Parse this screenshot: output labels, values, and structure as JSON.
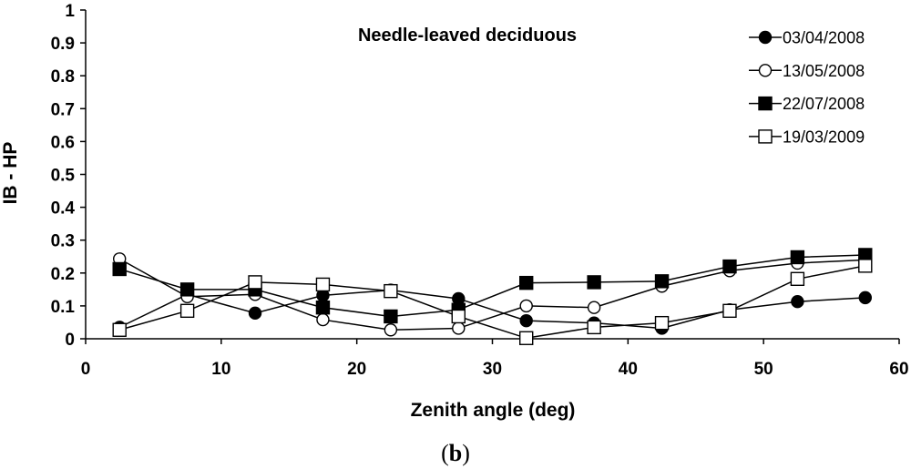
{
  "chart_data": {
    "type": "line",
    "title": "Needle-leaved deciduous",
    "xlabel": "Zenith angle (deg)",
    "ylabel": "IB - HP",
    "xlim": [
      0,
      60
    ],
    "ylim": [
      0,
      1
    ],
    "xticks": [
      "0",
      "10",
      "20",
      "30",
      "40",
      "50",
      "60"
    ],
    "yticks": [
      "0",
      "0.1",
      "0.2",
      "0.3",
      "0.4",
      "0.5",
      "0.6",
      "0.7",
      "0.8",
      "0.9",
      "1"
    ],
    "x": [
      2.5,
      7.5,
      12.5,
      17.5,
      22.5,
      27.5,
      32.5,
      37.5,
      42.5,
      47.5,
      52.5,
      57.5
    ],
    "series": [
      {
        "name": "03/04/2008",
        "marker": "filled-circle",
        "values": [
          0.035,
          0.135,
          0.078,
          0.132,
          0.148,
          0.122,
          0.055,
          0.048,
          0.032,
          0.088,
          0.113,
          0.125
        ]
      },
      {
        "name": "13/05/2008",
        "marker": "open-circle",
        "values": [
          0.243,
          0.128,
          0.135,
          0.058,
          0.027,
          0.032,
          0.1,
          0.095,
          0.16,
          0.207,
          0.23,
          0.24
        ]
      },
      {
        "name": "22/07/2008",
        "marker": "filled-square",
        "values": [
          0.212,
          0.15,
          0.15,
          0.095,
          0.068,
          0.088,
          0.17,
          0.172,
          0.175,
          0.22,
          0.248,
          0.255
        ]
      },
      {
        "name": "19/03/2009",
        "marker": "open-square",
        "values": [
          0.027,
          0.085,
          0.172,
          0.165,
          0.145,
          0.068,
          0.002,
          0.035,
          0.048,
          0.085,
          0.182,
          0.222
        ]
      }
    ]
  },
  "caption": {
    "open": "(",
    "letter": "b",
    "close": ")"
  }
}
